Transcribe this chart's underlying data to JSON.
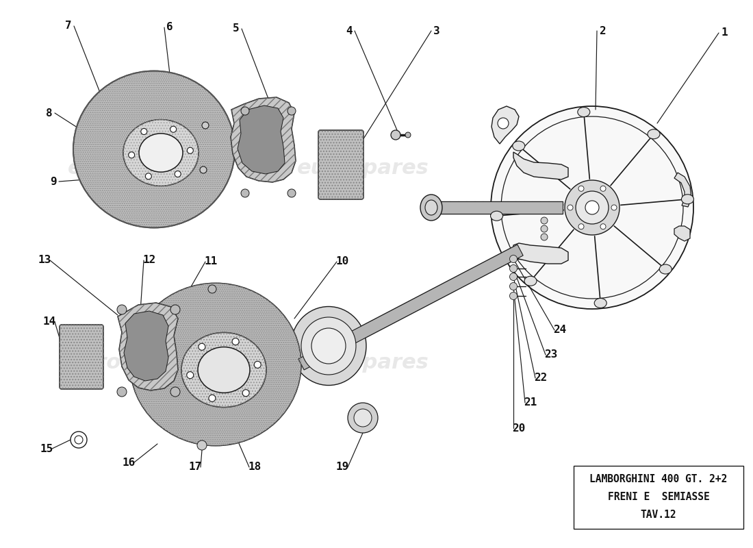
{
  "title_line1": "LAMBORGHINI 400 GT. 2+2",
  "title_line2": "FRENI E  SEMIASSE",
  "title_line3": "TAV.12",
  "bg_color": "#ffffff",
  "lc": "#1a1a1a",
  "fill_disc": "#b0b0b0",
  "fill_hub": "#d5d5d5",
  "fill_light": "#e8e8e8",
  "fill_pad": "#b8b8b8",
  "fill_caliper": "#c0c0c0"
}
